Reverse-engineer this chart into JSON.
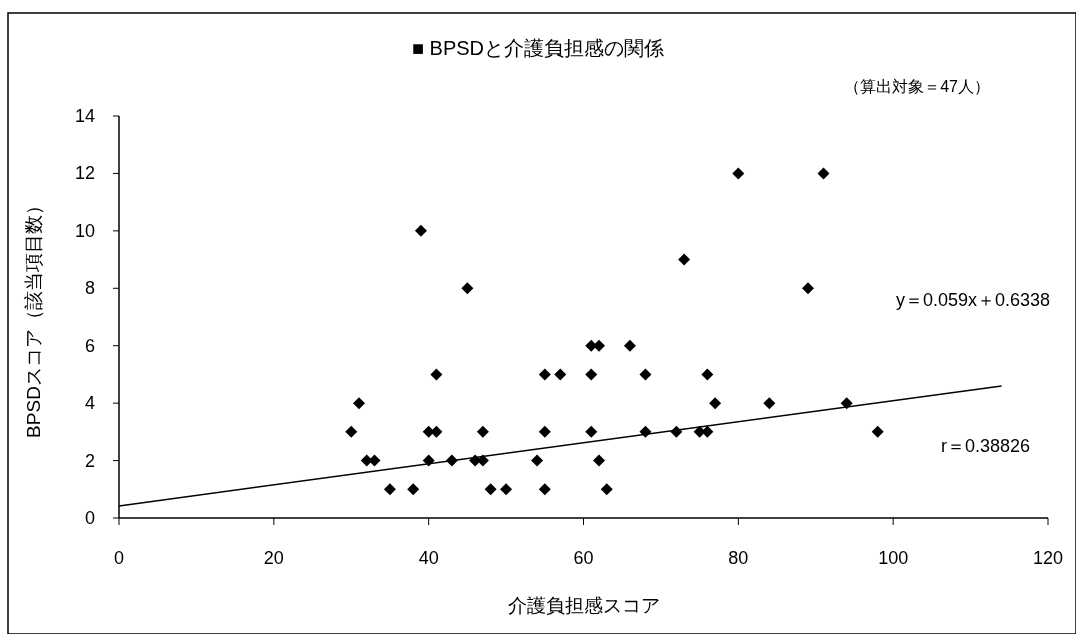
{
  "chart_data": {
    "type": "scatter",
    "title": "■ BPSDと介護負担感の関係",
    "subtitle": "（算出対象＝47人）",
    "xlabel": "介護負担感スコア",
    "ylabel": "BPSDスコア（該当項目数）",
    "xlim": [
      0,
      120
    ],
    "xticks": [
      0,
      20,
      40,
      60,
      80,
      100,
      120
    ],
    "ylim": [
      0,
      14
    ],
    "yticks": [
      0,
      2,
      4,
      6,
      8,
      10,
      12,
      14
    ],
    "grid": false,
    "marker": "diamond",
    "series": [
      {
        "color": "#000000",
        "x": [
          30,
          31,
          32,
          33,
          35,
          38,
          39,
          40,
          40,
          41,
          41,
          43,
          45,
          46,
          47,
          47,
          48,
          50,
          54,
          55,
          55,
          55,
          57,
          61,
          61,
          61,
          62,
          62,
          63,
          66,
          68,
          68,
          72,
          73,
          75,
          76,
          76,
          77,
          80,
          84,
          89,
          91,
          94,
          98
        ],
        "values": [
          3,
          4,
          2,
          2,
          1,
          1,
          10,
          3,
          2,
          3,
          5,
          2,
          8,
          2,
          2,
          3,
          1,
          1,
          2,
          5,
          3,
          1,
          5,
          6,
          5,
          3,
          6,
          2,
          1,
          6,
          5,
          3,
          3,
          9,
          3,
          5,
          3,
          4,
          12,
          4,
          8,
          12,
          4,
          3
        ]
      },
      {
        "type": "line",
        "color": "#000000",
        "marker": "none",
        "x": [
          0,
          114
        ],
        "values": [
          0.42,
          4.6
        ]
      }
    ],
    "annotations": [
      "y＝0.059x＋0.6338",
      "r＝0.38826"
    ]
  }
}
